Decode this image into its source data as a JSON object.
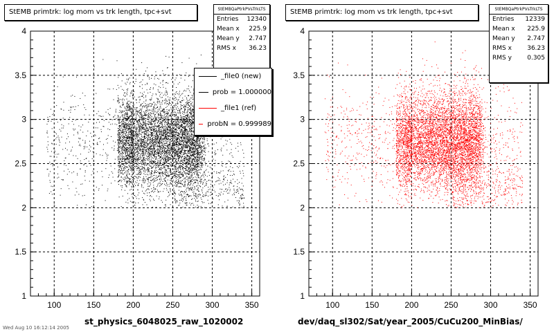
{
  "footer_text": "Wed Aug 10 16:12:14 2005",
  "chart_data": [
    {
      "type": "scatter",
      "title": "StEMB primtrk: log mom vs trk length, tpc+svt",
      "xlabel": "st_physics_6048025_raw_1020002",
      "ylabel": "",
      "xlim": [
        70,
        360
      ],
      "ylim": [
        1,
        4
      ],
      "xticks": [
        100,
        150,
        200,
        250,
        300,
        350
      ],
      "yticks": [
        1,
        1.5,
        2,
        2.5,
        3,
        3.5,
        4
      ],
      "grid": true,
      "marker_color": "#000000",
      "density": {
        "core_x": [
          180,
          280
        ],
        "core_y": [
          2.2,
          3.3
        ],
        "main_y_center": 2.75
      },
      "stats": {
        "name": "StEMBQaPtrkPVsTrkLTS",
        "rows": [
          {
            "label": "Entries",
            "value": "12340"
          },
          {
            "label": "Mean x",
            "value": "225.9"
          },
          {
            "label": "Mean y",
            "value": "2.747"
          },
          {
            "label": "RMS x",
            "value": "36.23"
          }
        ]
      },
      "legend": {
        "placement": "top-right",
        "entries": [
          {
            "label": "_file0 (new)",
            "color": "#000000"
          },
          {
            "label": "prob = 1.000000",
            "color": "#000000"
          },
          {
            "label": "_file1 (ref)",
            "color": "#ff0000"
          },
          {
            "label": "probN = 0.999989",
            "color": "#ff0000"
          }
        ]
      }
    },
    {
      "type": "scatter",
      "title": "StEMB primtrk: log mom vs trk length, tpc+svt",
      "xlabel": "dev/daq_sl302/Sat/year_2005/CuCu200_MinBias/",
      "ylabel": "",
      "xlim": [
        70,
        360
      ],
      "ylim": [
        1,
        4
      ],
      "xticks": [
        100,
        150,
        200,
        250,
        300,
        350
      ],
      "yticks": [
        1,
        1.5,
        2,
        2.5,
        3,
        3.5,
        4
      ],
      "grid": true,
      "marker_color": "#ff0000",
      "density": {
        "core_x": [
          190,
          280
        ],
        "core_y": [
          2.2,
          3.4
        ],
        "main_y_center": 2.75
      },
      "stats": {
        "name": "StEMBQaPtrkPVsTrkLTS",
        "rows": [
          {
            "label": "Entries",
            "value": "12339"
          },
          {
            "label": "Mean x",
            "value": "225.9"
          },
          {
            "label": "Mean y",
            "value": "2.747"
          },
          {
            "label": "RMS x",
            "value": "36.23"
          },
          {
            "label": "RMS y",
            "value": "0.305"
          }
        ]
      }
    }
  ]
}
